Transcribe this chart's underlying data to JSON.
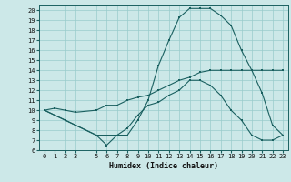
{
  "xlabel": "Humidex (Indice chaleur)",
  "background_color": "#cce8e8",
  "grid_color": "#99cccc",
  "line_color": "#1a6060",
  "xlim": [
    -0.5,
    23.5
  ],
  "ylim": [
    6,
    20.5
  ],
  "xticks": [
    0,
    1,
    2,
    3,
    5,
    6,
    7,
    8,
    9,
    10,
    11,
    12,
    13,
    14,
    15,
    16,
    17,
    18,
    19,
    20,
    21,
    22,
    23
  ],
  "yticks": [
    6,
    7,
    8,
    9,
    10,
    11,
    12,
    13,
    14,
    15,
    16,
    17,
    18,
    19,
    20
  ],
  "line1_x": [
    0,
    1,
    2,
    3,
    5,
    6,
    7,
    8,
    9,
    10,
    11,
    12,
    13,
    14,
    15,
    16,
    17,
    18,
    19,
    20,
    21,
    22,
    23
  ],
  "line1_y": [
    10,
    10.2,
    10,
    9.8,
    10,
    10.5,
    10.5,
    11,
    11.3,
    11.5,
    12,
    12.5,
    13,
    13.3,
    13.8,
    14,
    14,
    14,
    14,
    14,
    14,
    14,
    14
  ],
  "line2_x": [
    0,
    2,
    3,
    5,
    6,
    7,
    8,
    9,
    10,
    11,
    12,
    13,
    14,
    15,
    16,
    17,
    18,
    19,
    20,
    21,
    22,
    23
  ],
  "line2_y": [
    10,
    9,
    8.5,
    7.5,
    6.5,
    7.5,
    7.5,
    9,
    11,
    14.5,
    17,
    19.3,
    20.2,
    20.2,
    20.2,
    19.5,
    18.5,
    16,
    14,
    11.7,
    8.5,
    7.5
  ],
  "line3_x": [
    0,
    2,
    3,
    5,
    6,
    7,
    8,
    9,
    10,
    11,
    12,
    13,
    14,
    15,
    16,
    17,
    18,
    19,
    20,
    21,
    22,
    23
  ],
  "line3_y": [
    10,
    9,
    8.5,
    7.5,
    7.5,
    7.5,
    8.2,
    9.5,
    10.5,
    10.8,
    11.5,
    12,
    13,
    13,
    12.5,
    11.5,
    10,
    9,
    7.5,
    7,
    7,
    7.5
  ]
}
